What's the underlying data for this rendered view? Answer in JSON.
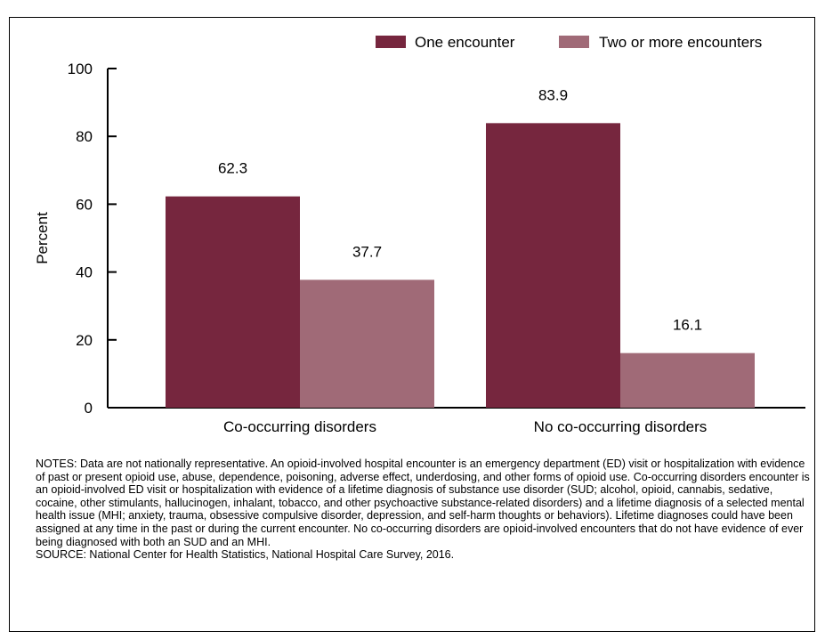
{
  "chart_data": {
    "type": "bar",
    "title": "",
    "xlabel": "",
    "ylabel": "Percent",
    "ylim": [
      0,
      100
    ],
    "yticks": [
      "0",
      "20",
      "40",
      "60",
      "80",
      "100"
    ],
    "categories": [
      "Co-occurring disorders",
      "No co-occurring disorders"
    ],
    "series": [
      {
        "name": "One encounter",
        "values": [
          62.3,
          83.9
        ],
        "labels": [
          "62.3",
          "83.9"
        ],
        "color": "#76263e"
      },
      {
        "name": "Two or more encounters",
        "values": [
          37.7,
          16.1
        ],
        "labels": [
          "37.7",
          "16.1"
        ],
        "color": "#a06a77"
      }
    ],
    "legend_position": "top-right",
    "grid": false
  },
  "notes": "NOTES: Data are not nationally representative. An opioid-involved hospital encounter is an emergency department (ED) visit or hospitalization with evidence of past or present opioid use, abuse, dependence, poisoning, adverse effect, underdosing, and other forms of opioid use. Co-occurring disorders encounter is an opioid-involved ED visit or hospitalization with evidence of a lifetime diagnosis of substance use disorder (SUD; alcohol, opioid, cannabis, sedative, cocaine, other stimulants, hallucinogen, inhalant, tobacco, and other psychoactive substance-related disorders) and a lifetime diagnosis of a selected mental health issue (MHI; anxiety, trauma, obsessive compulsive disorder, depression, and self-harm thoughts or behaviors). Lifetime diagnoses could have been assigned at any time in the past or during the current encounter. No co-occurring disorders are opioid-involved encounters that do not have evidence of ever being diagnosed with both an SUD and an MHI.",
  "source": "SOURCE: National Center for Health Statistics, National Hospital Care Survey, 2016."
}
